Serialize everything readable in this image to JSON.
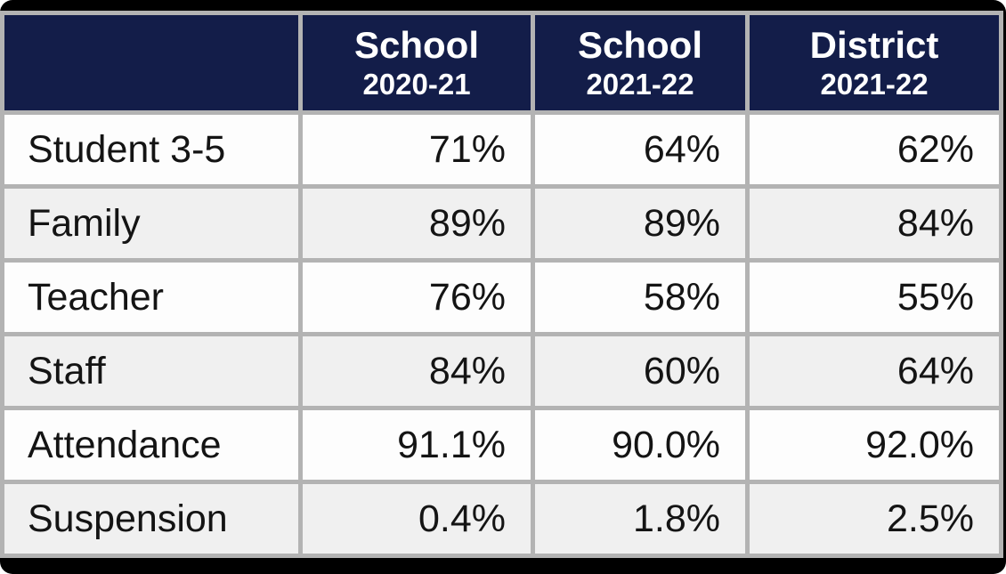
{
  "table": {
    "corner_label": "",
    "columns": [
      {
        "line1": "School",
        "line2": "2020-21"
      },
      {
        "line1": "School",
        "line2": "2021-22"
      },
      {
        "line1": "District",
        "line2": "2021-22"
      }
    ],
    "rows": [
      {
        "label": "Student 3-5",
        "values": [
          "71%",
          "64%",
          "62%"
        ]
      },
      {
        "label": "Family",
        "values": [
          "89%",
          "89%",
          "84%"
        ]
      },
      {
        "label": "Teacher",
        "values": [
          "76%",
          "58%",
          "55%"
        ]
      },
      {
        "label": "Staff",
        "values": [
          "84%",
          "60%",
          "64%"
        ]
      },
      {
        "label": "Attendance",
        "values": [
          "91.1%",
          "90.0%",
          "92.0%"
        ]
      },
      {
        "label": "Suspension",
        "values": [
          "0.4%",
          "1.8%",
          "2.5%"
        ]
      }
    ],
    "colors": {
      "header_background": "#131d49",
      "header_text": "#ffffff",
      "grid_border": "#b3b3b3",
      "row_alt_background": "#f0f0f0",
      "row_background": "#fdfdfd",
      "frame_background": "#000000",
      "body_text": "#141414"
    }
  },
  "chart_data": {
    "type": "table",
    "title": "",
    "categories": [
      "Student 3-5",
      "Family",
      "Teacher",
      "Staff",
      "Attendance",
      "Suspension"
    ],
    "series": [
      {
        "name": "School 2020-21",
        "values": [
          71,
          89,
          76,
          84,
          91.1,
          0.4
        ]
      },
      {
        "name": "School 2021-22",
        "values": [
          64,
          89,
          58,
          60,
          90.0,
          1.8
        ]
      },
      {
        "name": "District 2021-22",
        "values": [
          62,
          84,
          55,
          64,
          92.0,
          2.5
        ]
      }
    ],
    "unit": "%"
  }
}
